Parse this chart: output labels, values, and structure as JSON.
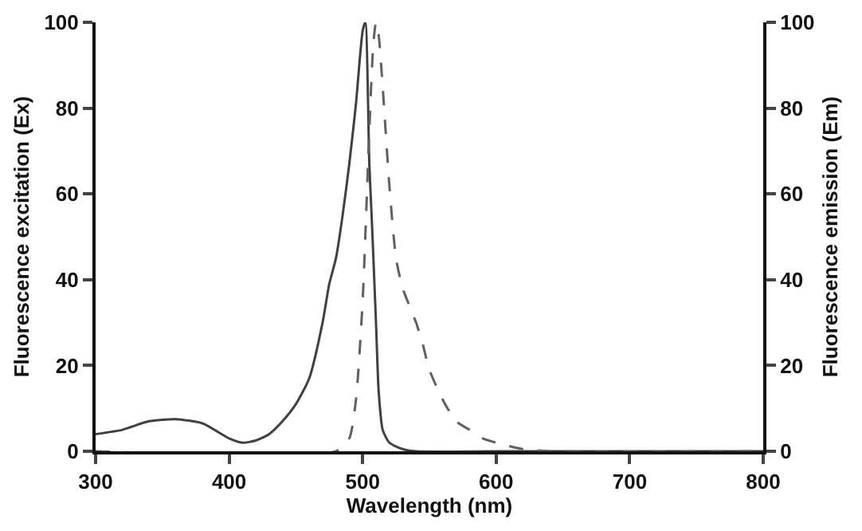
{
  "chart_data": {
    "type": "line",
    "xlabel": "Wavelength (nm)",
    "ylabel": "Fluorescence excitation (Ex)",
    "y2label": "Fluorescence emission (Em)",
    "xlim": [
      300,
      800
    ],
    "xticks": [
      300,
      400,
      500,
      600,
      700,
      800
    ],
    "ylim": [
      0,
      100
    ],
    "yticks": [
      0,
      20,
      40,
      60,
      80,
      100
    ],
    "y2lim": [
      0,
      100
    ],
    "y2ticks": [
      0,
      20,
      40,
      60,
      80,
      100
    ],
    "grid": false,
    "marker": "none",
    "series": [
      {
        "color": "#404040",
        "line_style": "solid",
        "x": [
          300,
          320,
          340,
          360,
          380,
          400,
          410,
          420,
          430,
          440,
          450,
          460,
          470,
          475,
          480,
          485,
          490,
          495,
          500,
          502,
          505,
          507,
          510,
          512,
          515,
          520,
          530,
          540,
          600,
          800
        ],
        "values": [
          4,
          5,
          7,
          7.5,
          6.5,
          3,
          2,
          2.5,
          4,
          7,
          11,
          17,
          30,
          39,
          45,
          55,
          67,
          81,
          98,
          100,
          67,
          53,
          30,
          14,
          5,
          2,
          0.5,
          0,
          0,
          0
        ]
      },
      {
        "color": "#606060",
        "line_style": "dashed",
        "axis": "y2",
        "x": [
          300,
          480,
          490,
          495,
          500,
          505,
          508,
          510,
          512,
          515,
          520,
          525,
          530,
          540,
          545,
          550,
          560,
          570,
          580,
          590,
          600,
          620,
          640,
          800
        ],
        "values": [
          0,
          0,
          3,
          12,
          35,
          75,
          95,
          100,
          97,
          85,
          62,
          45,
          38,
          30,
          25,
          19,
          12,
          7,
          5,
          3,
          2,
          0.5,
          0,
          0
        ]
      }
    ]
  }
}
